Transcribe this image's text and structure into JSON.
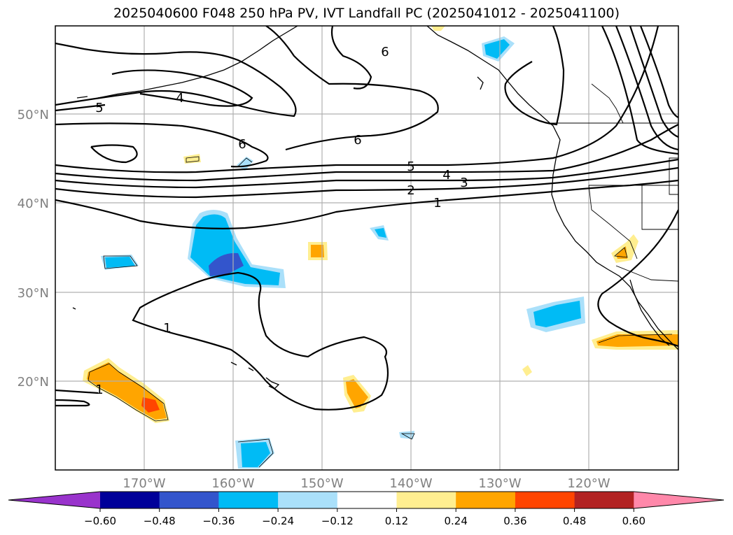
{
  "title": "2025040600 F048 250 hPa PV, IVT Landfall PC (2025041012 - 2025041100)",
  "map": {
    "lat_labels": [
      "50°N",
      "40°N",
      "30°N",
      "20°N"
    ],
    "lon_labels": [
      "170°W",
      "160°W",
      "150°W",
      "140°W",
      "130°W",
      "120°W"
    ],
    "pv_contour_labels": [
      "6",
      "4",
      "5",
      "6",
      "6",
      "5",
      "4",
      "3",
      "2",
      "1",
      "1",
      "1"
    ]
  },
  "colorbar": {
    "colors": [
      "#9933cc",
      "#000099",
      "#3355cc",
      "#00bbf5",
      "#aae0fa",
      "#ffffff",
      "#ffee90",
      "#ffa500",
      "#ff4500",
      "#b22222",
      "#ff88aa"
    ],
    "tick_labels": [
      "−0.60",
      "−0.48",
      "−0.36",
      "−0.24",
      "−0.12",
      "0.12",
      "0.24",
      "0.36",
      "0.48",
      "0.60"
    ]
  }
}
